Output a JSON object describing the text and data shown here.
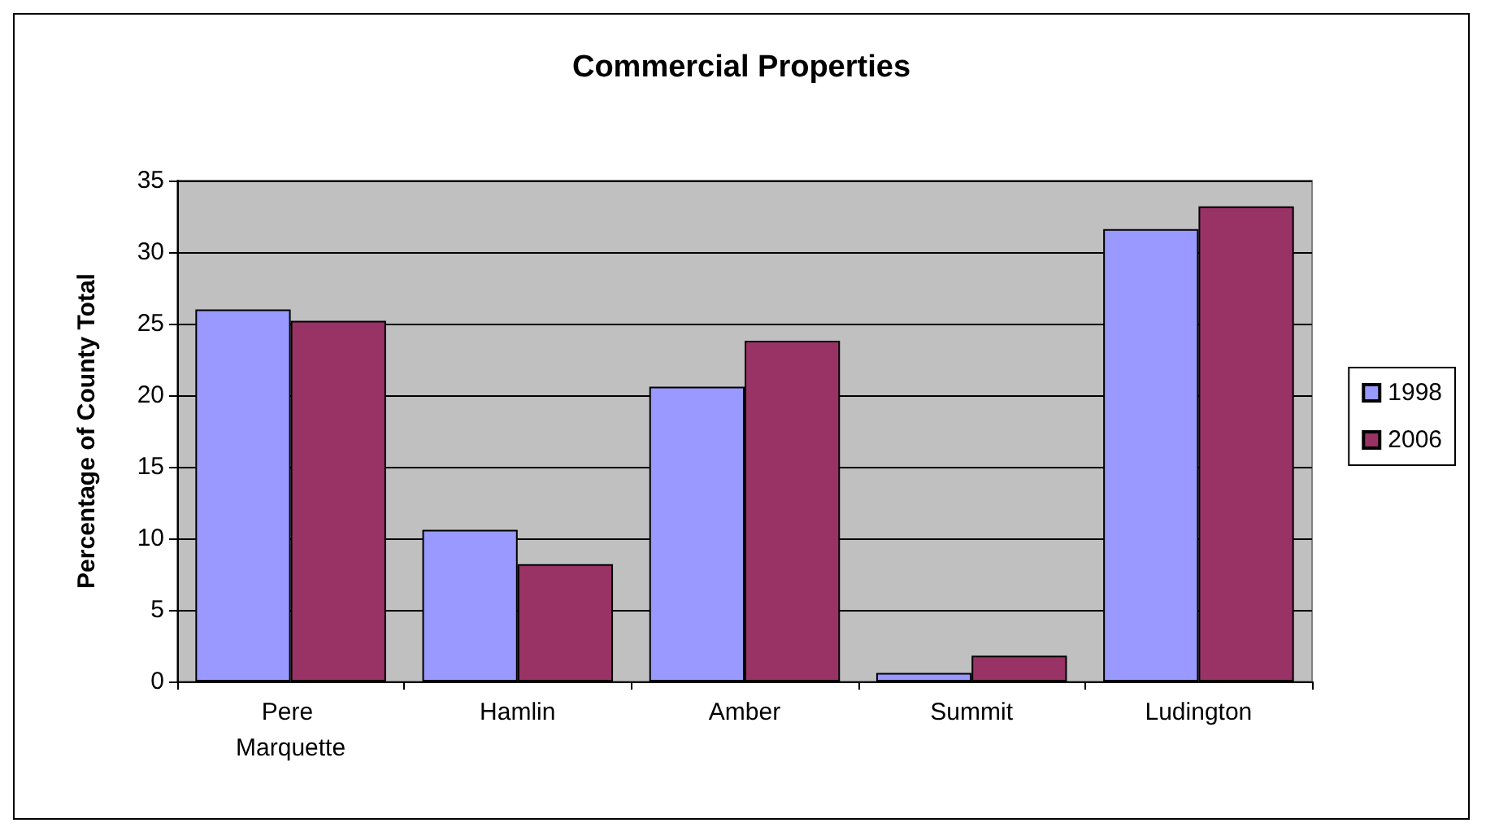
{
  "chart_data": {
    "type": "bar",
    "title": "Commercial Properties",
    "ylabel": "Percentage of County Total",
    "categories": [
      "Pere Marquette",
      "Hamlin",
      "Amber",
      "Summit",
      "Ludington"
    ],
    "series": [
      {
        "name": "1998",
        "color": "#9999ff",
        "values": [
          26.0,
          10.6,
          20.6,
          0.6,
          31.6
        ]
      },
      {
        "name": "2006",
        "color": "#993366",
        "values": [
          25.2,
          8.2,
          23.8,
          1.8,
          33.2
        ]
      }
    ],
    "ylim": [
      0,
      35
    ],
    "yticks": [
      0,
      5,
      10,
      15,
      20,
      25,
      30,
      35
    ],
    "grid": "y",
    "legend": "right"
  }
}
